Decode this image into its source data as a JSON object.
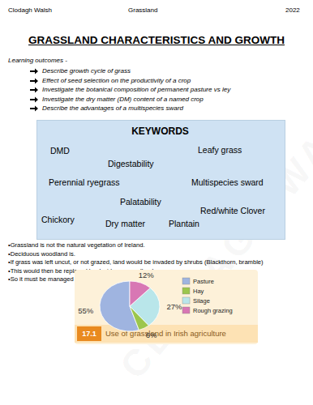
{
  "header": {
    "author": "Clodagh Walsh",
    "subject": "Grassland",
    "year": "2022"
  },
  "title": "GRASSLAND CHARACTERISTICS AND GROWTH",
  "learning_outcomes": {
    "heading": "Learning outcomes -",
    "items": [
      "Describe growth cycle of grass",
      "Effect of seed selection on the productivity of a crop",
      "Investigate the botanical composition of permanent pasture vs ley",
      "Investigate the dry matter (DM) content of a named crop",
      "Describe the advantages of a multispecies sward"
    ]
  },
  "keywords": {
    "heading": "KEYWORDS",
    "items": [
      "DMD",
      "Leafy grass",
      "Digestability",
      "Perennial ryegrass",
      "Multispecies sward",
      "Palatability",
      "Red/white Clover",
      "Chickory",
      "Dry matter",
      "Plantain"
    ]
  },
  "bullets": [
    "•Grassland is not the natural vegetation of Ireland.",
    "•Deciduous woodland is.",
    "•If grass was left uncut, or not grazed, land would be invaded by shrubs (Blackthorn, bramble)",
    "•This would then be replaced by deciduous woodland.",
    "•So it must be managed"
  ],
  "watermark": "CLODAGH WALSH",
  "figure_number": "17.1",
  "chart_data": {
    "type": "pie",
    "title": "Use of grassland in Irish agriculture",
    "categories": [
      "Pasture",
      "Hay",
      "Silage",
      "Rough grazing"
    ],
    "values": [
      55,
      6,
      27,
      12
    ],
    "value_labels": [
      "55%",
      "6%",
      "27%",
      "12%"
    ],
    "colors": [
      "#9fb4e0",
      "#9cc64c",
      "#b9e6ea",
      "#d877b4"
    ],
    "data_labels": true,
    "legend": "right"
  }
}
